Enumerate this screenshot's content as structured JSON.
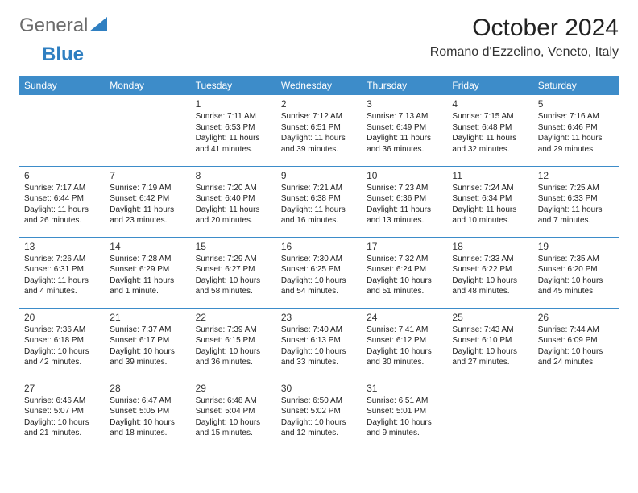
{
  "logo": {
    "part1": "General",
    "part2": "Blue"
  },
  "title": "October 2024",
  "location": "Romano d'Ezzelino, Veneto, Italy",
  "header_color": "#3d8cc9",
  "divider_color": "#3d8cc9",
  "day_headers": [
    "Sunday",
    "Monday",
    "Tuesday",
    "Wednesday",
    "Thursday",
    "Friday",
    "Saturday"
  ],
  "weeks": [
    [
      null,
      null,
      {
        "n": "1",
        "sr": "Sunrise: 7:11 AM",
        "ss": "Sunset: 6:53 PM",
        "dl": "Daylight: 11 hours and 41 minutes."
      },
      {
        "n": "2",
        "sr": "Sunrise: 7:12 AM",
        "ss": "Sunset: 6:51 PM",
        "dl": "Daylight: 11 hours and 39 minutes."
      },
      {
        "n": "3",
        "sr": "Sunrise: 7:13 AM",
        "ss": "Sunset: 6:49 PM",
        "dl": "Daylight: 11 hours and 36 minutes."
      },
      {
        "n": "4",
        "sr": "Sunrise: 7:15 AM",
        "ss": "Sunset: 6:48 PM",
        "dl": "Daylight: 11 hours and 32 minutes."
      },
      {
        "n": "5",
        "sr": "Sunrise: 7:16 AM",
        "ss": "Sunset: 6:46 PM",
        "dl": "Daylight: 11 hours and 29 minutes."
      }
    ],
    [
      {
        "n": "6",
        "sr": "Sunrise: 7:17 AM",
        "ss": "Sunset: 6:44 PM",
        "dl": "Daylight: 11 hours and 26 minutes."
      },
      {
        "n": "7",
        "sr": "Sunrise: 7:19 AM",
        "ss": "Sunset: 6:42 PM",
        "dl": "Daylight: 11 hours and 23 minutes."
      },
      {
        "n": "8",
        "sr": "Sunrise: 7:20 AM",
        "ss": "Sunset: 6:40 PM",
        "dl": "Daylight: 11 hours and 20 minutes."
      },
      {
        "n": "9",
        "sr": "Sunrise: 7:21 AM",
        "ss": "Sunset: 6:38 PM",
        "dl": "Daylight: 11 hours and 16 minutes."
      },
      {
        "n": "10",
        "sr": "Sunrise: 7:23 AM",
        "ss": "Sunset: 6:36 PM",
        "dl": "Daylight: 11 hours and 13 minutes."
      },
      {
        "n": "11",
        "sr": "Sunrise: 7:24 AM",
        "ss": "Sunset: 6:34 PM",
        "dl": "Daylight: 11 hours and 10 minutes."
      },
      {
        "n": "12",
        "sr": "Sunrise: 7:25 AM",
        "ss": "Sunset: 6:33 PM",
        "dl": "Daylight: 11 hours and 7 minutes."
      }
    ],
    [
      {
        "n": "13",
        "sr": "Sunrise: 7:26 AM",
        "ss": "Sunset: 6:31 PM",
        "dl": "Daylight: 11 hours and 4 minutes."
      },
      {
        "n": "14",
        "sr": "Sunrise: 7:28 AM",
        "ss": "Sunset: 6:29 PM",
        "dl": "Daylight: 11 hours and 1 minute."
      },
      {
        "n": "15",
        "sr": "Sunrise: 7:29 AM",
        "ss": "Sunset: 6:27 PM",
        "dl": "Daylight: 10 hours and 58 minutes."
      },
      {
        "n": "16",
        "sr": "Sunrise: 7:30 AM",
        "ss": "Sunset: 6:25 PM",
        "dl": "Daylight: 10 hours and 54 minutes."
      },
      {
        "n": "17",
        "sr": "Sunrise: 7:32 AM",
        "ss": "Sunset: 6:24 PM",
        "dl": "Daylight: 10 hours and 51 minutes."
      },
      {
        "n": "18",
        "sr": "Sunrise: 7:33 AM",
        "ss": "Sunset: 6:22 PM",
        "dl": "Daylight: 10 hours and 48 minutes."
      },
      {
        "n": "19",
        "sr": "Sunrise: 7:35 AM",
        "ss": "Sunset: 6:20 PM",
        "dl": "Daylight: 10 hours and 45 minutes."
      }
    ],
    [
      {
        "n": "20",
        "sr": "Sunrise: 7:36 AM",
        "ss": "Sunset: 6:18 PM",
        "dl": "Daylight: 10 hours and 42 minutes."
      },
      {
        "n": "21",
        "sr": "Sunrise: 7:37 AM",
        "ss": "Sunset: 6:17 PM",
        "dl": "Daylight: 10 hours and 39 minutes."
      },
      {
        "n": "22",
        "sr": "Sunrise: 7:39 AM",
        "ss": "Sunset: 6:15 PM",
        "dl": "Daylight: 10 hours and 36 minutes."
      },
      {
        "n": "23",
        "sr": "Sunrise: 7:40 AM",
        "ss": "Sunset: 6:13 PM",
        "dl": "Daylight: 10 hours and 33 minutes."
      },
      {
        "n": "24",
        "sr": "Sunrise: 7:41 AM",
        "ss": "Sunset: 6:12 PM",
        "dl": "Daylight: 10 hours and 30 minutes."
      },
      {
        "n": "25",
        "sr": "Sunrise: 7:43 AM",
        "ss": "Sunset: 6:10 PM",
        "dl": "Daylight: 10 hours and 27 minutes."
      },
      {
        "n": "26",
        "sr": "Sunrise: 7:44 AM",
        "ss": "Sunset: 6:09 PM",
        "dl": "Daylight: 10 hours and 24 minutes."
      }
    ],
    [
      {
        "n": "27",
        "sr": "Sunrise: 6:46 AM",
        "ss": "Sunset: 5:07 PM",
        "dl": "Daylight: 10 hours and 21 minutes."
      },
      {
        "n": "28",
        "sr": "Sunrise: 6:47 AM",
        "ss": "Sunset: 5:05 PM",
        "dl": "Daylight: 10 hours and 18 minutes."
      },
      {
        "n": "29",
        "sr": "Sunrise: 6:48 AM",
        "ss": "Sunset: 5:04 PM",
        "dl": "Daylight: 10 hours and 15 minutes."
      },
      {
        "n": "30",
        "sr": "Sunrise: 6:50 AM",
        "ss": "Sunset: 5:02 PM",
        "dl": "Daylight: 10 hours and 12 minutes."
      },
      {
        "n": "31",
        "sr": "Sunrise: 6:51 AM",
        "ss": "Sunset: 5:01 PM",
        "dl": "Daylight: 10 hours and 9 minutes."
      },
      null,
      null
    ]
  ]
}
